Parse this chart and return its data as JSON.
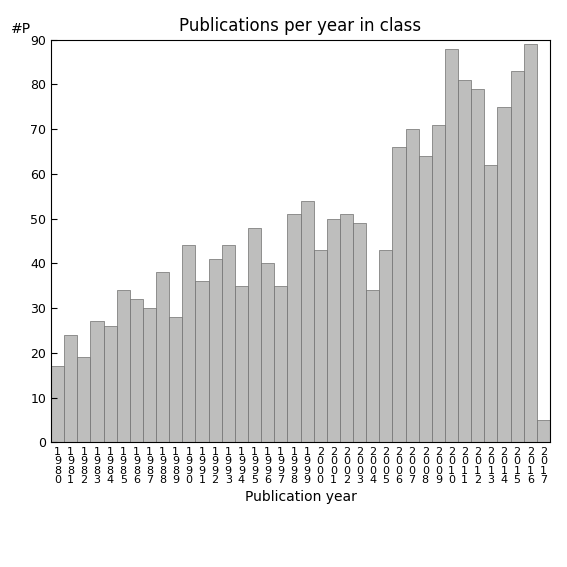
{
  "title": "Publications per year in class",
  "xlabel": "Publication year",
  "ylabel": "#P",
  "years": [
    1980,
    1981,
    1982,
    1983,
    1984,
    1985,
    1986,
    1987,
    1988,
    1989,
    1990,
    1991,
    1992,
    1993,
    1994,
    1995,
    1996,
    1997,
    1998,
    1999,
    2000,
    2001,
    2002,
    2003,
    2004,
    2005,
    2006,
    2007,
    2008,
    2009,
    2010,
    2011,
    2012,
    2013,
    2014,
    2015,
    2016,
    2017
  ],
  "values": [
    17,
    24,
    19,
    27,
    26,
    34,
    32,
    30,
    38,
    28,
    44,
    36,
    41,
    44,
    35,
    48,
    40,
    35,
    51,
    54,
    43,
    50,
    51,
    49,
    34,
    43,
    66,
    70,
    64,
    71,
    88,
    81,
    79,
    62,
    75,
    83,
    89,
    5
  ],
  "bar_color": "#bebebd",
  "bar_edge_color": "#6e6e6e",
  "ylim": [
    0,
    90
  ],
  "yticks": [
    0,
    10,
    20,
    30,
    40,
    50,
    60,
    70,
    80,
    90
  ],
  "background_color": "#ffffff",
  "title_fontsize": 12,
  "axis_label_fontsize": 10,
  "tick_fontsize": 9
}
